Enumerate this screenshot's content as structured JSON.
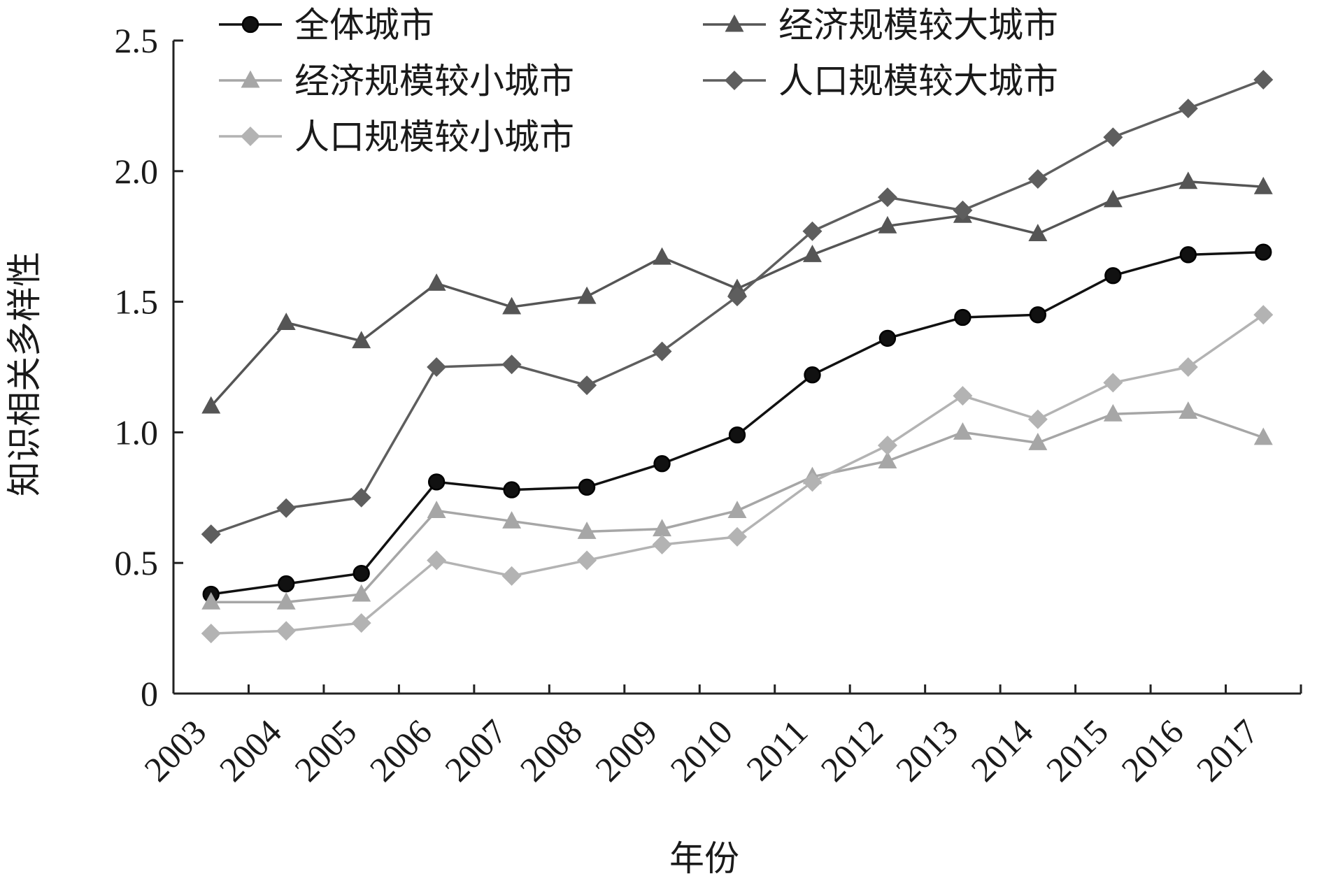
{
  "chart_data": {
    "type": "line",
    "xlabel": "年份",
    "ylabel": "知识相关多样性",
    "ylim": [
      0,
      2.5
    ],
    "yticks": [
      "0",
      "0.5",
      "1.0",
      "1.5",
      "2.0",
      "2.5"
    ],
    "ytick_values": [
      0,
      0.5,
      1.0,
      1.5,
      2.0,
      2.5
    ],
    "categories": [
      "2003",
      "2004",
      "2005",
      "2006",
      "2007",
      "2008",
      "2009",
      "2010",
      "2011",
      "2012",
      "2013",
      "2014",
      "2015",
      "2016",
      "2017"
    ],
    "grid": false,
    "legend_position": "top-left",
    "series": [
      {
        "name": "全体城市",
        "marker": "circle",
        "color": "#111111",
        "values": [
          0.38,
          0.42,
          0.46,
          0.81,
          0.78,
          0.79,
          0.88,
          0.99,
          1.22,
          1.36,
          1.44,
          1.45,
          1.6,
          1.68,
          1.69
        ]
      },
      {
        "name": "经济规模较大城市",
        "marker": "triangle",
        "color": "#555555",
        "values": [
          1.1,
          1.42,
          1.35,
          1.57,
          1.48,
          1.52,
          1.67,
          1.55,
          1.68,
          1.79,
          1.83,
          1.76,
          1.89,
          1.96,
          1.94
        ]
      },
      {
        "name": "经济规模较小城市",
        "marker": "triangle",
        "color": "#a6a6a6",
        "values": [
          0.35,
          0.35,
          0.38,
          0.7,
          0.66,
          0.62,
          0.63,
          0.7,
          0.83,
          0.89,
          1.0,
          0.96,
          1.07,
          1.08,
          0.98
        ]
      },
      {
        "name": "人口规模较大城市",
        "marker": "diamond",
        "color": "#5e5e5e",
        "values": [
          0.61,
          0.71,
          0.75,
          1.25,
          1.26,
          1.18,
          1.31,
          1.52,
          1.77,
          1.9,
          1.85,
          1.97,
          2.13,
          2.24,
          2.35
        ]
      },
      {
        "name": "人口规模较小城市",
        "marker": "diamond",
        "color": "#b3b3b3",
        "values": [
          0.23,
          0.24,
          0.27,
          0.51,
          0.45,
          0.51,
          0.57,
          0.6,
          0.81,
          0.95,
          1.14,
          1.05,
          1.19,
          1.25,
          1.45
        ]
      }
    ]
  }
}
